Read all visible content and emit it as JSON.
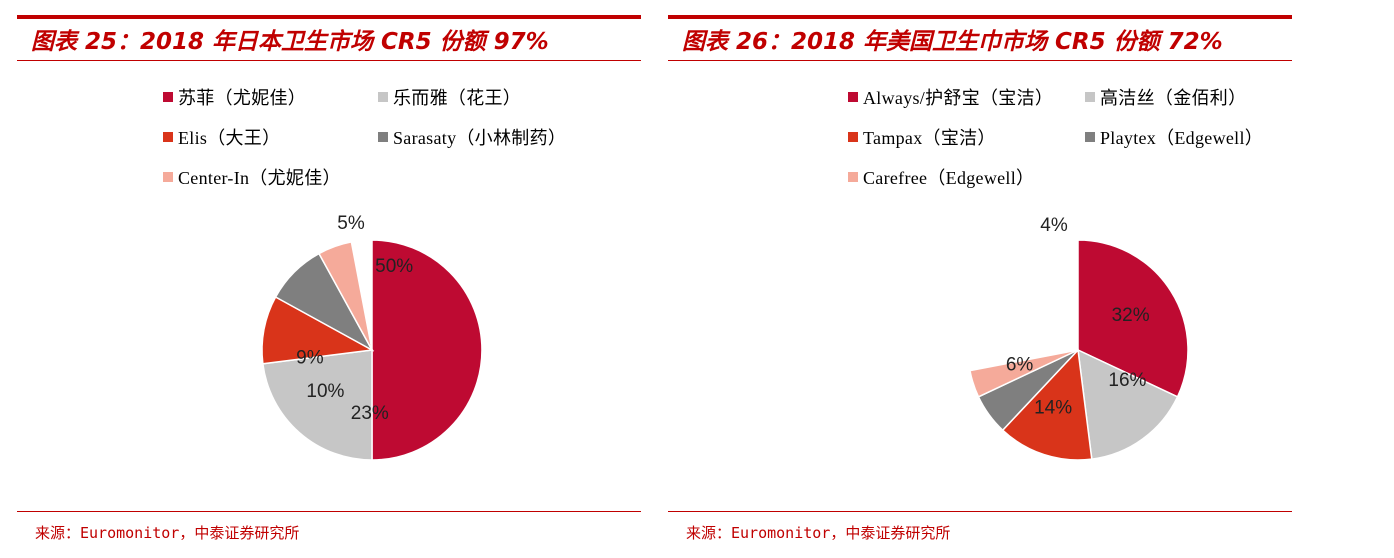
{
  "panels": [
    {
      "title": "图表 25：2018 年日本卫生市场 CR5 份额 97%",
      "source": "来源：Euromonitor，中泰证券研究所",
      "colors": [
        "#be0a32",
        "#c6c6c6",
        "#d9341a",
        "#7f7f7f",
        "#f5aa9a"
      ]
    },
    {
      "title": "图表 26：2018 年美国卫生巾市场 CR5 份额 72%",
      "source": "来源：Euromonitor，中泰证券研究所",
      "colors": [
        "#be0a32",
        "#c6c6c6",
        "#d9341a",
        "#7f7f7f",
        "#f5aa9a"
      ]
    }
  ],
  "chart_data": [
    {
      "type": "pie",
      "title": "",
      "categories": [
        "苏菲（尤妮佳）",
        "乐而雅（花王）",
        "Elis（大王）",
        "Sarasaty（小林制药）",
        "Center-In（尤妮佳）",
        ""
      ],
      "values": [
        50,
        23,
        10,
        9,
        5,
        3
      ],
      "labels": [
        "50%",
        "23%",
        "10%",
        "9%",
        "5%",
        ""
      ],
      "legend": "top"
    },
    {
      "type": "pie",
      "title": "",
      "categories": [
        "Always/护舒宝（宝洁）",
        "高洁丝（金佰利）",
        "Tampax（宝洁）",
        "Playtex（Edgewell）",
        "Carefree（Edgewell）",
        ""
      ],
      "values": [
        32,
        16,
        14,
        6,
        4,
        28
      ],
      "labels": [
        "32%",
        "16%",
        "14%",
        "6%",
        "4%",
        ""
      ],
      "legend": "top"
    }
  ]
}
